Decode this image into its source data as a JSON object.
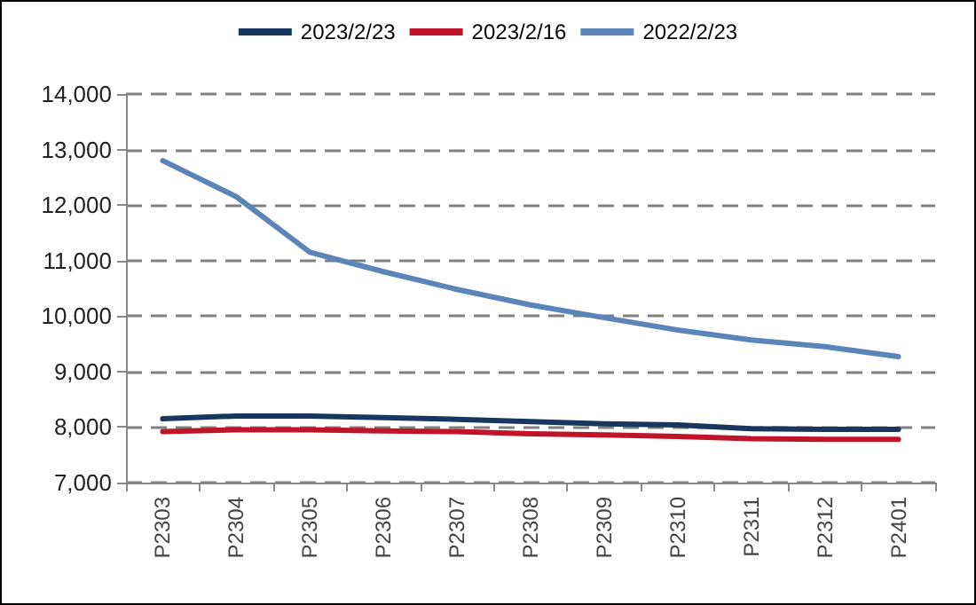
{
  "chart_data": {
    "type": "line",
    "categories": [
      "P2303",
      "P2304",
      "P2305",
      "P2306",
      "P2307",
      "P2308",
      "P2309",
      "P2310",
      "P2311",
      "P2312",
      "P2401"
    ],
    "series": [
      {
        "name": "2023/2/23",
        "color": "#17375e",
        "values": [
          8150,
          8200,
          8200,
          8170,
          8140,
          8100,
          8060,
          8040,
          7970,
          7960,
          7960
        ]
      },
      {
        "name": "2023/2/16",
        "color": "#c0142a",
        "values": [
          7920,
          7950,
          7950,
          7930,
          7920,
          7880,
          7860,
          7830,
          7790,
          7780,
          7780
        ]
      },
      {
        "name": "2022/2/23",
        "color": "#5b84b8",
        "values": [
          12800,
          12150,
          11150,
          10800,
          10480,
          10200,
          9970,
          9750,
          9570,
          9450,
          9270
        ]
      }
    ],
    "ylim": [
      7000,
      14000
    ],
    "yticks": [
      {
        "value": 7000,
        "label": "7,000"
      },
      {
        "value": 8000,
        "label": "8,000"
      },
      {
        "value": 9000,
        "label": "9,000"
      },
      {
        "value": 10000,
        "label": "10,000"
      },
      {
        "value": 11000,
        "label": "11,000"
      },
      {
        "value": 12000,
        "label": "12,000"
      },
      {
        "value": 13000,
        "label": "13,000"
      },
      {
        "value": 14000,
        "label": "14,000"
      }
    ],
    "grid": "y",
    "legend": "top",
    "marker": "none",
    "line_style": "solid"
  }
}
